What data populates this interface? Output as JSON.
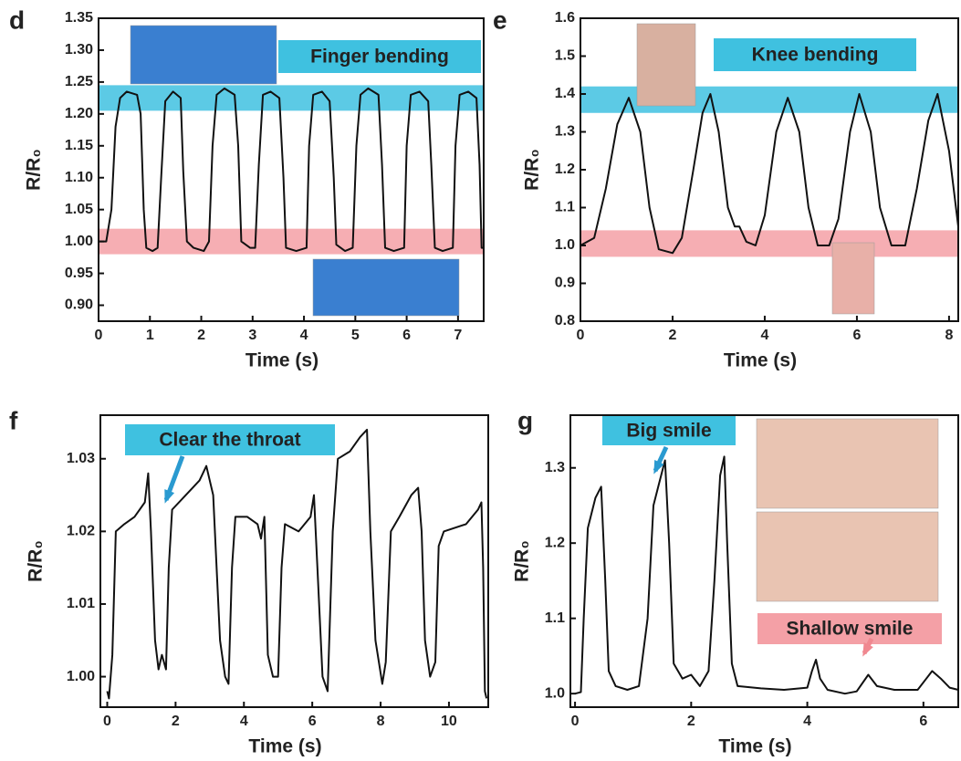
{
  "chart_data": [
    {
      "type": "line",
      "panel": "d",
      "x_label": "Time (s)",
      "y_label": "R/R₀",
      "xlim": [
        0,
        7.5
      ],
      "ylim": [
        0.875,
        1.35
      ],
      "xticks": [
        0,
        1,
        2,
        3,
        4,
        5,
        6,
        7
      ],
      "yticks": [
        {
          "value": 0.9,
          "label": "0.90"
        },
        {
          "value": 0.95,
          "label": "0.95"
        },
        {
          "value": 1.0,
          "label": "1.00"
        },
        {
          "value": 1.05,
          "label": "1.05"
        },
        {
          "value": 1.1,
          "label": "1.10"
        },
        {
          "value": 1.15,
          "label": "1.15"
        },
        {
          "value": 1.2,
          "label": "1.20"
        },
        {
          "value": 1.25,
          "label": "1.25"
        },
        {
          "value": 1.3,
          "label": "1.30"
        },
        {
          "value": 1.35,
          "label": "1.35"
        }
      ],
      "bands": [
        {
          "range": [
            1.205,
            1.245
          ],
          "color": "#3fc1e0"
        },
        {
          "range": [
            0.98,
            1.02
          ],
          "color": "#f4a0a6"
        }
      ],
      "annotations": [
        {
          "text": "Finger bending",
          "color": "#3fc1e0"
        }
      ],
      "series": [
        {
          "color": "#111111",
          "x": [
            0,
            0.15,
            0.25,
            0.33,
            0.42,
            0.55,
            0.75,
            0.82,
            0.88,
            0.93,
            1.05,
            1.15,
            1.22,
            1.3,
            1.45,
            1.6,
            1.65,
            1.72,
            1.85,
            2.05,
            2.15,
            2.22,
            2.3,
            2.45,
            2.65,
            2.72,
            2.78,
            2.95,
            3.05,
            3.12,
            3.2,
            3.35,
            3.52,
            3.6,
            3.65,
            3.85,
            4.05,
            4.1,
            4.18,
            4.35,
            4.5,
            4.58,
            4.63,
            4.8,
            4.95,
            5.02,
            5.1,
            5.25,
            5.45,
            5.52,
            5.58,
            5.75,
            5.95,
            6.0,
            6.08,
            6.25,
            6.42,
            6.48,
            6.55,
            6.7,
            6.9,
            6.95,
            7.03,
            7.2,
            7.36,
            7.42,
            7.46,
            7.5
          ],
          "values": [
            1.0,
            1.0,
            1.05,
            1.18,
            1.225,
            1.235,
            1.23,
            1.2,
            1.05,
            0.99,
            0.985,
            0.99,
            1.1,
            1.22,
            1.235,
            1.225,
            1.11,
            1.0,
            0.99,
            0.985,
            1.0,
            1.15,
            1.23,
            1.24,
            1.23,
            1.15,
            1.0,
            0.99,
            0.99,
            1.12,
            1.23,
            1.235,
            1.225,
            1.1,
            0.99,
            0.985,
            0.99,
            1.15,
            1.23,
            1.235,
            1.22,
            1.1,
            0.995,
            0.985,
            0.99,
            1.15,
            1.23,
            1.24,
            1.23,
            1.12,
            0.99,
            0.985,
            0.99,
            1.15,
            1.23,
            1.235,
            1.22,
            1.12,
            0.99,
            0.985,
            0.99,
            1.15,
            1.23,
            1.235,
            1.225,
            1.12,
            0.99,
            0.99
          ]
        }
      ]
    },
    {
      "type": "line",
      "panel": "e",
      "x_label": "Time (s)",
      "y_label": "R/R₀",
      "xlim": [
        0,
        8.2
      ],
      "ylim": [
        0.8,
        1.6
      ],
      "xticks": [
        0,
        2,
        4,
        6,
        8
      ],
      "yticks": [
        {
          "value": 0.8,
          "label": "0.8"
        },
        {
          "value": 0.9,
          "label": "0.9"
        },
        {
          "value": 1.0,
          "label": "1.0"
        },
        {
          "value": 1.1,
          "label": "1.1"
        },
        {
          "value": 1.2,
          "label": "1.2"
        },
        {
          "value": 1.3,
          "label": "1.3"
        },
        {
          "value": 1.4,
          "label": "1.4"
        },
        {
          "value": 1.5,
          "label": "1.5"
        },
        {
          "value": 1.6,
          "label": "1.6"
        }
      ],
      "bands": [
        {
          "range": [
            1.35,
            1.42
          ],
          "color": "#3fc1e0"
        },
        {
          "range": [
            0.97,
            1.04
          ],
          "color": "#f4a0a6"
        }
      ],
      "annotations": [
        {
          "text": "Knee bending",
          "color": "#3fc1e0"
        }
      ],
      "series": [
        {
          "color": "#111111",
          "x": [
            0,
            0.3,
            0.55,
            0.8,
            1.05,
            1.3,
            1.5,
            1.7,
            2.0,
            2.2,
            2.45,
            2.65,
            2.82,
            3.0,
            3.2,
            3.35,
            3.45,
            3.6,
            3.8,
            4.0,
            4.25,
            4.5,
            4.75,
            4.95,
            5.15,
            5.4,
            5.6,
            5.85,
            6.05,
            6.3,
            6.5,
            6.75,
            7.05,
            7.3,
            7.55,
            7.75,
            8.0,
            8.2
          ],
          "values": [
            1.0,
            1.02,
            1.15,
            1.32,
            1.39,
            1.3,
            1.1,
            0.99,
            0.98,
            1.02,
            1.2,
            1.35,
            1.4,
            1.3,
            1.1,
            1.05,
            1.05,
            1.01,
            1.0,
            1.08,
            1.3,
            1.39,
            1.3,
            1.1,
            1.0,
            1.0,
            1.07,
            1.3,
            1.4,
            1.3,
            1.1,
            1.0,
            1.0,
            1.15,
            1.33,
            1.4,
            1.25,
            1.05
          ]
        }
      ]
    },
    {
      "type": "line",
      "panel": "f",
      "x_label": "Time (s)",
      "y_label": "R/R₀",
      "xlim": [
        -0.2,
        11.15
      ],
      "ylim": [
        0.9958,
        1.036
      ],
      "xticks": [
        0,
        2,
        4,
        6,
        8,
        10
      ],
      "yticks": [
        {
          "value": 1.0,
          "label": "1.00"
        },
        {
          "value": 1.01,
          "label": "1.01"
        },
        {
          "value": 1.02,
          "label": "1.02"
        },
        {
          "value": 1.03,
          "label": "1.03"
        }
      ],
      "bands": [],
      "annotations": [
        {
          "text": "Clear the throat",
          "color": "#3fc1e0"
        }
      ],
      "series": [
        {
          "color": "#111111",
          "x": [
            0,
            0.05,
            0.15,
            0.25,
            0.5,
            0.8,
            1.1,
            1.2,
            1.28,
            1.4,
            1.5,
            1.6,
            1.72,
            1.8,
            1.9,
            2.3,
            2.7,
            2.9,
            3.1,
            3.3,
            3.45,
            3.55,
            3.65,
            3.75,
            4.1,
            4.4,
            4.5,
            4.6,
            4.7,
            4.85,
            5.0,
            5.1,
            5.2,
            5.6,
            5.95,
            6.05,
            6.15,
            6.3,
            6.45,
            6.6,
            6.75,
            7.1,
            7.4,
            7.6,
            7.7,
            7.85,
            8.05,
            8.15,
            8.3,
            8.55,
            8.9,
            9.1,
            9.2,
            9.3,
            9.45,
            9.6,
            9.7,
            9.85,
            10.5,
            10.85,
            10.95,
            11.0,
            11.05,
            11.1
          ],
          "values": [
            0.998,
            0.997,
            1.003,
            1.02,
            1.021,
            1.022,
            1.024,
            1.028,
            1.02,
            1.005,
            1.001,
            1.003,
            1.001,
            1.015,
            1.023,
            1.025,
            1.027,
            1.029,
            1.025,
            1.005,
            1.0,
            0.999,
            1.015,
            1.022,
            1.022,
            1.021,
            1.019,
            1.022,
            1.003,
            1.0,
            1.0,
            1.015,
            1.021,
            1.02,
            1.022,
            1.025,
            1.015,
            1.0,
            0.998,
            1.02,
            1.03,
            1.031,
            1.033,
            1.034,
            1.02,
            1.005,
            0.999,
            1.002,
            1.02,
            1.022,
            1.025,
            1.026,
            1.02,
            1.005,
            1.0,
            1.002,
            1.018,
            1.02,
            1.021,
            1.023,
            1.024,
            1.015,
            0.998,
            0.997
          ]
        }
      ]
    },
    {
      "type": "line",
      "panel": "g",
      "x_label": "Time (s)",
      "y_label": "R/R₀",
      "xlim": [
        -0.08,
        6.6
      ],
      "ylim": [
        0.982,
        1.37
      ],
      "xticks": [
        0,
        2,
        4,
        6
      ],
      "yticks": [
        {
          "value": 1.0,
          "label": "1.0"
        },
        {
          "value": 1.1,
          "label": "1.1"
        },
        {
          "value": 1.2,
          "label": "1.2"
        },
        {
          "value": 1.3,
          "label": "1.3"
        }
      ],
      "bands": [],
      "annotations": [
        {
          "text": "Big smile",
          "color": "#3fc1e0"
        },
        {
          "text": "Shallow smile",
          "color": "#f4a0a6"
        }
      ],
      "series": [
        {
          "color": "#111111",
          "x": [
            0,
            0.1,
            0.15,
            0.22,
            0.35,
            0.45,
            0.52,
            0.58,
            0.7,
            0.9,
            1.1,
            1.25,
            1.35,
            1.45,
            1.55,
            1.62,
            1.7,
            1.85,
            2.0,
            2.15,
            2.3,
            2.4,
            2.5,
            2.57,
            2.62,
            2.7,
            2.8,
            3.2,
            3.6,
            4.0,
            4.08,
            4.15,
            4.22,
            4.35,
            4.65,
            4.85,
            5.05,
            5.2,
            5.5,
            5.9,
            6.05,
            6.15,
            6.3,
            6.45,
            6.6
          ],
          "values": [
            1.0,
            1.002,
            1.1,
            1.22,
            1.26,
            1.275,
            1.15,
            1.03,
            1.01,
            1.005,
            1.01,
            1.1,
            1.25,
            1.28,
            1.31,
            1.2,
            1.04,
            1.02,
            1.025,
            1.01,
            1.03,
            1.15,
            1.29,
            1.315,
            1.2,
            1.04,
            1.01,
            1.007,
            1.005,
            1.008,
            1.03,
            1.045,
            1.02,
            1.005,
            1.0,
            1.003,
            1.025,
            1.01,
            1.005,
            1.005,
            1.02,
            1.03,
            1.02,
            1.008,
            1.005
          ]
        }
      ]
    }
  ]
}
